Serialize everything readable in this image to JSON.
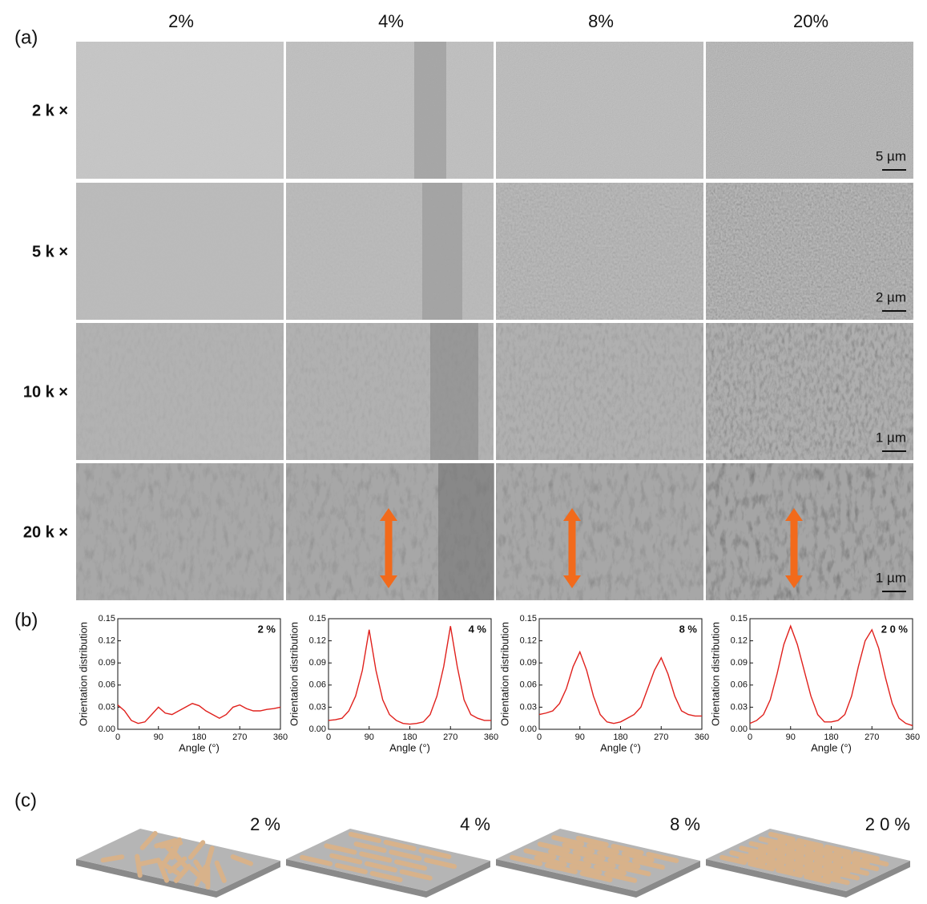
{
  "panel_labels": [
    "(a)",
    "(b)",
    "(c)"
  ],
  "columns": [
    "2%",
    "4%",
    "8%",
    "20%"
  ],
  "row_labels": [
    "2 k ×",
    "5 k ×",
    "10 k ×",
    "20 k ×"
  ],
  "scale_bars": [
    "5 µm",
    "2 µm",
    "1 µm",
    "1 µm"
  ],
  "schematic_labels": [
    "2 %",
    "4 %",
    "8 %",
    "2 0 %"
  ],
  "chart_data": [
    {
      "type": "line",
      "title": "2 %",
      "x_label": "Angle (°)",
      "y_label": "Orientation distribution",
      "x": [
        0,
        15,
        30,
        45,
        60,
        75,
        90,
        105,
        120,
        135,
        150,
        165,
        180,
        195,
        210,
        225,
        240,
        255,
        270,
        285,
        300,
        315,
        330,
        345,
        360
      ],
      "series": [
        {
          "color": "#e0201c",
          "values": [
            0.033,
            0.025,
            0.012,
            0.008,
            0.01,
            0.02,
            0.03,
            0.022,
            0.02,
            0.025,
            0.03,
            0.035,
            0.032,
            0.025,
            0.02,
            0.015,
            0.02,
            0.03,
            0.033,
            0.028,
            0.025,
            0.025,
            0.027,
            0.028,
            0.03
          ]
        }
      ],
      "xlim": [
        0,
        360
      ],
      "xticks": [
        0,
        90,
        180,
        270,
        360
      ],
      "ylim": [
        0,
        0.15
      ],
      "yticks": [
        {
          "value": 0,
          "label": "0.00"
        },
        {
          "value": 0.03,
          "label": "0.03"
        },
        {
          "value": 0.06,
          "label": "0.06"
        },
        {
          "value": 0.09,
          "label": "0.09"
        },
        {
          "value": 0.12,
          "label": "0.12"
        },
        {
          "value": 0.15,
          "label": "0.15"
        }
      ]
    },
    {
      "type": "line",
      "title": "4 %",
      "x_label": "Angle (°)",
      "y_label": "Orientation distribution",
      "x": [
        0,
        15,
        30,
        45,
        60,
        75,
        90,
        105,
        120,
        135,
        150,
        165,
        180,
        195,
        210,
        225,
        240,
        255,
        270,
        285,
        300,
        315,
        330,
        345,
        360
      ],
      "series": [
        {
          "color": "#e0201c",
          "values": [
            0.012,
            0.013,
            0.015,
            0.025,
            0.045,
            0.08,
            0.135,
            0.08,
            0.04,
            0.02,
            0.012,
            0.008,
            0.007,
            0.008,
            0.01,
            0.02,
            0.045,
            0.085,
            0.14,
            0.085,
            0.04,
            0.02,
            0.015,
            0.012,
            0.012
          ]
        }
      ],
      "xlim": [
        0,
        360
      ],
      "xticks": [
        0,
        90,
        180,
        270,
        360
      ],
      "ylim": [
        0,
        0.15
      ],
      "yticks": [
        {
          "value": 0,
          "label": "0.00"
        },
        {
          "value": 0.03,
          "label": "0.03"
        },
        {
          "value": 0.06,
          "label": "0.06"
        },
        {
          "value": 0.09,
          "label": "0.09"
        },
        {
          "value": 0.12,
          "label": "0.12"
        },
        {
          "value": 0.15,
          "label": "0.15"
        }
      ]
    },
    {
      "type": "line",
      "title": "8 %",
      "x_label": "Angle (°)",
      "y_label": "Orientation distribution",
      "x": [
        0,
        15,
        30,
        45,
        60,
        75,
        90,
        105,
        120,
        135,
        150,
        165,
        180,
        195,
        210,
        225,
        240,
        255,
        270,
        285,
        300,
        315,
        330,
        345,
        360
      ],
      "series": [
        {
          "color": "#e0201c",
          "values": [
            0.02,
            0.022,
            0.025,
            0.035,
            0.055,
            0.085,
            0.105,
            0.08,
            0.045,
            0.02,
            0.01,
            0.008,
            0.01,
            0.015,
            0.02,
            0.03,
            0.055,
            0.08,
            0.097,
            0.075,
            0.045,
            0.025,
            0.02,
            0.018,
            0.018
          ]
        }
      ],
      "xlim": [
        0,
        360
      ],
      "xticks": [
        0,
        90,
        180,
        270,
        360
      ],
      "ylim": [
        0,
        0.15
      ],
      "yticks": [
        {
          "value": 0,
          "label": "0.00"
        },
        {
          "value": 0.03,
          "label": "0.03"
        },
        {
          "value": 0.06,
          "label": "0.06"
        },
        {
          "value": 0.09,
          "label": "0.09"
        },
        {
          "value": 0.12,
          "label": "0.12"
        },
        {
          "value": 0.15,
          "label": "0.15"
        }
      ]
    },
    {
      "type": "line",
      "title": "2 0 %",
      "x_label": "Angle (°)",
      "y_label": "Orientation distribution",
      "x": [
        0,
        15,
        30,
        45,
        60,
        75,
        90,
        105,
        120,
        135,
        150,
        165,
        180,
        195,
        210,
        225,
        240,
        255,
        270,
        285,
        300,
        315,
        330,
        345,
        360
      ],
      "series": [
        {
          "color": "#e0201c",
          "values": [
            0.008,
            0.012,
            0.02,
            0.04,
            0.075,
            0.115,
            0.14,
            0.115,
            0.08,
            0.045,
            0.02,
            0.01,
            0.01,
            0.012,
            0.02,
            0.045,
            0.085,
            0.12,
            0.135,
            0.11,
            0.07,
            0.035,
            0.015,
            0.008,
            0.005
          ]
        }
      ],
      "xlim": [
        0,
        360
      ],
      "xticks": [
        0,
        90,
        180,
        270,
        360
      ],
      "ylim": [
        0,
        0.15
      ],
      "yticks": [
        {
          "value": 0,
          "label": "0.00"
        },
        {
          "value": 0.03,
          "label": "0.03"
        },
        {
          "value": 0.06,
          "label": "0.06"
        },
        {
          "value": 0.09,
          "label": "0.09"
        },
        {
          "value": 0.12,
          "label": "0.12"
        },
        {
          "value": 0.15,
          "label": "0.15"
        }
      ]
    }
  ]
}
